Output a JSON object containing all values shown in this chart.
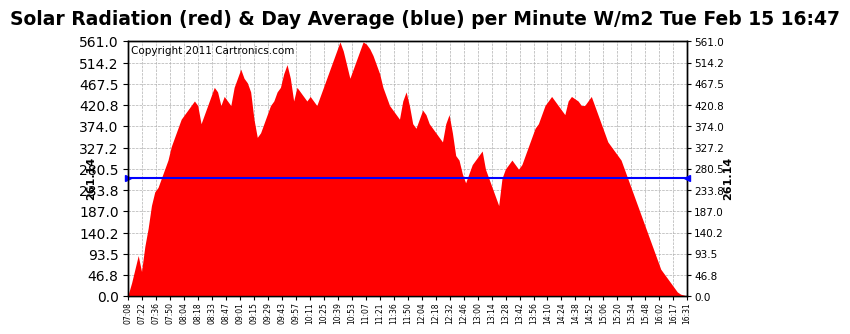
{
  "title": "Solar Radiation (red) & Day Average (blue) per Minute W/m2 Tue Feb 15 16:47",
  "copyright": "Copyright 2011 Cartronics.com",
  "avg_value": 261.14,
  "ymax": 561.0,
  "ymin": 0.0,
  "yticks_right": [
    0.0,
    46.8,
    93.5,
    140.2,
    187.0,
    233.8,
    280.5,
    327.2,
    374.0,
    420.8,
    467.5,
    514.2,
    561.0
  ],
  "ytick_labels_right": [
    "0.0",
    "46.8",
    "93.5",
    "140.2",
    "187.0",
    "233.8",
    "280.5",
    "327.2",
    "374.0",
    "420.8",
    "467.5",
    "514.2",
    "561.0"
  ],
  "xtick_labels": [
    "07:08",
    "07:22",
    "07:36",
    "07:50",
    "08:04",
    "08:18",
    "08:33",
    "08:47",
    "09:01",
    "09:15",
    "09:29",
    "09:43",
    "09:57",
    "10:11",
    "10:25",
    "10:39",
    "10:53",
    "11:07",
    "11:21",
    "11:36",
    "11:50",
    "12:04",
    "12:18",
    "12:32",
    "12:46",
    "13:00",
    "13:14",
    "13:28",
    "13:42",
    "13:56",
    "14:10",
    "14:24",
    "14:38",
    "14:52",
    "15:06",
    "15:20",
    "15:34",
    "15:48",
    "16:02",
    "16:17",
    "16:31"
  ],
  "fill_color": "#FF0000",
  "line_color": "#0000FF",
  "bg_color": "#FFFFFF",
  "grid_color": "#B0B0B0",
  "title_fontsize": 13.5,
  "copyright_fontsize": 7.5,
  "avg_label_fontsize": 8,
  "solar_data": [
    5,
    30,
    60,
    90,
    55,
    110,
    150,
    200,
    230,
    240,
    260,
    280,
    300,
    330,
    350,
    370,
    390,
    400,
    410,
    420,
    430,
    420,
    380,
    400,
    420,
    440,
    460,
    450,
    420,
    440,
    430,
    420,
    460,
    480,
    500,
    480,
    470,
    450,
    390,
    350,
    360,
    380,
    400,
    420,
    430,
    450,
    460,
    490,
    510,
    480,
    430,
    460,
    450,
    440,
    430,
    440,
    430,
    420,
    440,
    460,
    480,
    500,
    520,
    540,
    560,
    540,
    510,
    480,
    500,
    520,
    540,
    560,
    555,
    545,
    530,
    510,
    490,
    460,
    440,
    420,
    410,
    400,
    390,
    430,
    450,
    420,
    380,
    370,
    390,
    410,
    400,
    380,
    370,
    360,
    350,
    340,
    380,
    400,
    360,
    310,
    300,
    270,
    250,
    270,
    290,
    300,
    310,
    320,
    280,
    260,
    240,
    220,
    200,
    260,
    280,
    290,
    300,
    290,
    280,
    290,
    310,
    330,
    350,
    370,
    380,
    400,
    420,
    430,
    440,
    430,
    420,
    410,
    400,
    430,
    440,
    435,
    430,
    420,
    420,
    430,
    440,
    420,
    400,
    380,
    360,
    340,
    330,
    320,
    310,
    300,
    280,
    260,
    240,
    220,
    200,
    180,
    160,
    140,
    120,
    100,
    80,
    60,
    50,
    40,
    30,
    20,
    10,
    5,
    3,
    1
  ]
}
